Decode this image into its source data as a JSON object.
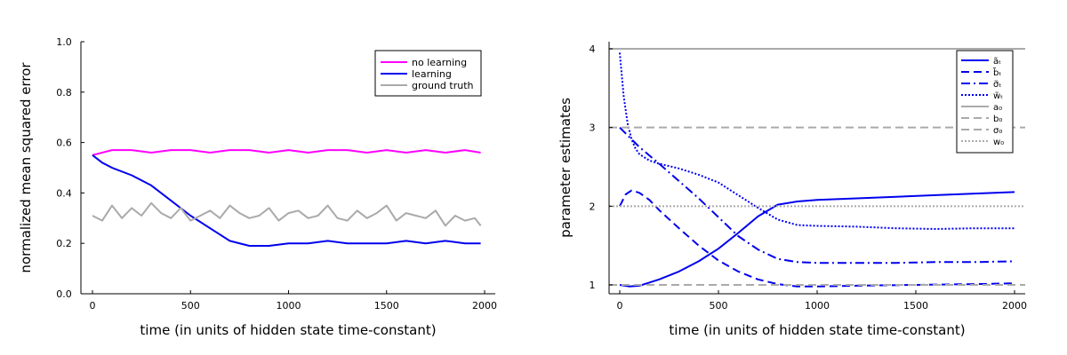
{
  "chart_data": [
    {
      "type": "line",
      "title": "",
      "xlabel": "time (in units of hidden state time-constant)",
      "ylabel": "normalized mean squared error",
      "xlim": [
        0,
        2000
      ],
      "ylim": [
        0.0,
        1.0
      ],
      "xticks": [
        "0",
        "500",
        "1000",
        "1500",
        "2000"
      ],
      "yticks": [
        "0.0",
        "0.2",
        "0.4",
        "0.6",
        "0.8",
        "1.0"
      ],
      "grid": false,
      "legend_position": "top-right",
      "series": [
        {
          "name": "no learning",
          "color": "#ff00ff",
          "style": "solid",
          "x": [
            0,
            100,
            200,
            300,
            400,
            500,
            600,
            700,
            800,
            900,
            1000,
            1100,
            1200,
            1300,
            1400,
            1500,
            1600,
            1700,
            1800,
            1900,
            1980
          ],
          "y": [
            0.55,
            0.57,
            0.57,
            0.56,
            0.57,
            0.57,
            0.56,
            0.57,
            0.57,
            0.56,
            0.57,
            0.56,
            0.57,
            0.57,
            0.56,
            0.57,
            0.56,
            0.57,
            0.56,
            0.57,
            0.56
          ]
        },
        {
          "name": "learning",
          "color": "#0000ee",
          "style": "solid",
          "x": [
            0,
            50,
            100,
            200,
            300,
            400,
            500,
            600,
            700,
            800,
            900,
            1000,
            1100,
            1200,
            1300,
            1400,
            1500,
            1600,
            1700,
            1800,
            1900,
            1980
          ],
          "y": [
            0.55,
            0.52,
            0.5,
            0.47,
            0.43,
            0.37,
            0.31,
            0.26,
            0.21,
            0.19,
            0.19,
            0.2,
            0.2,
            0.21,
            0.2,
            0.2,
            0.2,
            0.21,
            0.2,
            0.21,
            0.2,
            0.2
          ]
        },
        {
          "name": "ground truth",
          "color": "#aaaaaa",
          "style": "solid",
          "x": [
            0,
            50,
            100,
            150,
            200,
            250,
            300,
            350,
            400,
            450,
            500,
            550,
            600,
            650,
            700,
            750,
            800,
            850,
            900,
            950,
            1000,
            1050,
            1100,
            1150,
            1200,
            1250,
            1300,
            1350,
            1400,
            1450,
            1500,
            1550,
            1600,
            1650,
            1700,
            1750,
            1800,
            1850,
            1900,
            1950,
            1980
          ],
          "y": [
            0.31,
            0.29,
            0.35,
            0.3,
            0.34,
            0.31,
            0.36,
            0.32,
            0.3,
            0.34,
            0.29,
            0.31,
            0.33,
            0.3,
            0.35,
            0.32,
            0.3,
            0.31,
            0.34,
            0.29,
            0.32,
            0.33,
            0.3,
            0.31,
            0.35,
            0.3,
            0.29,
            0.33,
            0.3,
            0.32,
            0.35,
            0.29,
            0.32,
            0.31,
            0.3,
            0.33,
            0.27,
            0.31,
            0.29,
            0.3,
            0.27
          ]
        }
      ]
    },
    {
      "type": "line",
      "title": "",
      "xlabel": "time (in units of hidden state time-constant)",
      "ylabel": "parameter estimates",
      "xlim": [
        0,
        2000
      ],
      "ylim": [
        1,
        4
      ],
      "xticks": [
        "0",
        "500",
        "1000",
        "1500",
        "2000"
      ],
      "yticks": [
        "1",
        "2",
        "3",
        "4"
      ],
      "grid": false,
      "legend_position": "top-right",
      "series": [
        {
          "name": "ãₜ",
          "color": "#0000ee",
          "style": "solid",
          "x": [
            0,
            50,
            100,
            200,
            300,
            400,
            500,
            600,
            700,
            800,
            900,
            1000,
            1200,
            1400,
            1600,
            1800,
            2000
          ],
          "y": [
            1.0,
            0.98,
            0.99,
            1.07,
            1.17,
            1.3,
            1.46,
            1.66,
            1.87,
            2.02,
            2.06,
            2.08,
            2.1,
            2.12,
            2.14,
            2.16,
            2.18
          ]
        },
        {
          "name": "b̃ₜ",
          "color": "#0000ee",
          "style": "dash",
          "x": [
            0,
            30,
            60,
            100,
            150,
            200,
            300,
            400,
            500,
            600,
            700,
            800,
            900,
            1000,
            1200,
            1500,
            1800,
            2000
          ],
          "y": [
            2.0,
            2.15,
            2.2,
            2.17,
            2.08,
            1.95,
            1.72,
            1.5,
            1.31,
            1.17,
            1.07,
            1.01,
            0.98,
            0.98,
            0.99,
            1.0,
            1.01,
            1.02
          ]
        },
        {
          "name": "σ̃ₜ",
          "color": "#0000ee",
          "style": "dashdot",
          "x": [
            0,
            100,
            200,
            300,
            400,
            500,
            600,
            700,
            800,
            900,
            1000,
            1200,
            1400,
            1600,
            1800,
            2000
          ],
          "y": [
            3.0,
            2.75,
            2.54,
            2.32,
            2.1,
            1.86,
            1.62,
            1.45,
            1.33,
            1.29,
            1.28,
            1.28,
            1.28,
            1.29,
            1.29,
            1.3
          ]
        },
        {
          "name": "w̃ₜ",
          "color": "#0000ee",
          "style": "dot",
          "x": [
            0,
            20,
            40,
            60,
            80,
            100,
            150,
            200,
            300,
            400,
            500,
            600,
            700,
            800,
            900,
            1000,
            1200,
            1400,
            1600,
            1800,
            2000
          ],
          "y": [
            3.95,
            3.4,
            3.05,
            2.85,
            2.73,
            2.66,
            2.58,
            2.54,
            2.48,
            2.4,
            2.3,
            2.14,
            1.98,
            1.83,
            1.76,
            1.75,
            1.74,
            1.72,
            1.71,
            1.72,
            1.72
          ]
        },
        {
          "name": "a₀",
          "color": "#aaaaaa",
          "style": "solid",
          "value": 4
        },
        {
          "name": "b₀",
          "color": "#aaaaaa",
          "style": "dash",
          "value": 1
        },
        {
          "name": "σ₀",
          "color": "#aaaaaa",
          "style": "dash",
          "value": 3
        },
        {
          "name": "w₀",
          "color": "#aaaaaa",
          "style": "dot",
          "value": 2
        }
      ]
    }
  ]
}
